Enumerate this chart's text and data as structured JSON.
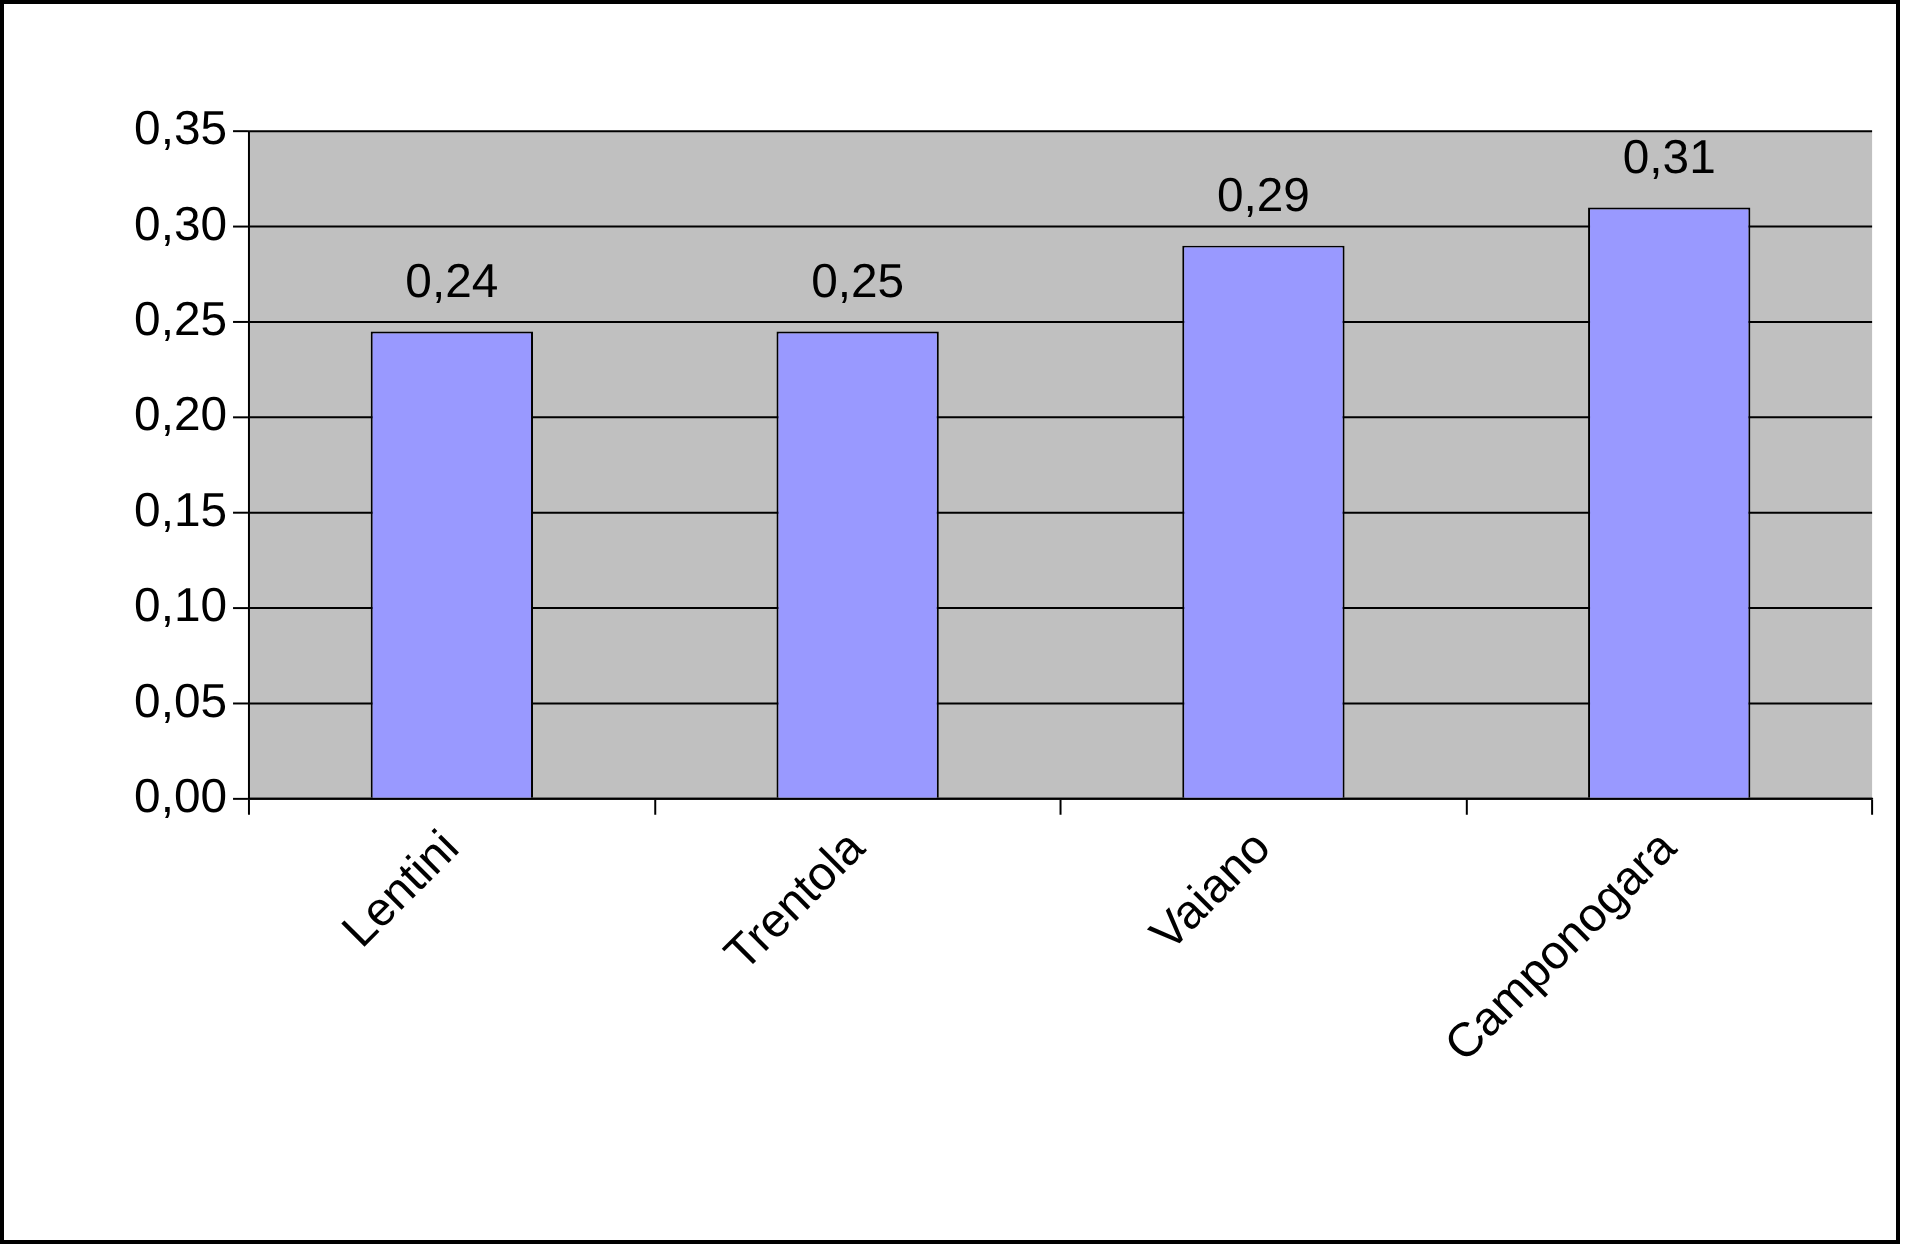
{
  "chart_data": {
    "type": "bar",
    "categories": [
      "Lentini",
      "Trentola",
      "Vaiano",
      "Camponogara"
    ],
    "values": [
      0.245,
      0.245,
      0.29,
      0.31
    ],
    "value_labels": [
      "0,24",
      "0,25",
      "0,29",
      "0,31"
    ],
    "color": "#9999ff",
    "ylim": [
      0,
      0.35
    ],
    "yticks": [
      {
        "value": 0,
        "label": "0,00"
      },
      {
        "value": 0.05,
        "label": "0,05"
      },
      {
        "value": 0.1,
        "label": "0,10"
      },
      {
        "value": 0.15,
        "label": "0,15"
      },
      {
        "value": 0.2,
        "label": "0,20"
      },
      {
        "value": 0.25,
        "label": "0,25"
      },
      {
        "value": 0.3,
        "label": "0,30"
      },
      {
        "value": 0.35,
        "label": "0,35"
      }
    ],
    "grid": "y",
    "legend": false
  }
}
